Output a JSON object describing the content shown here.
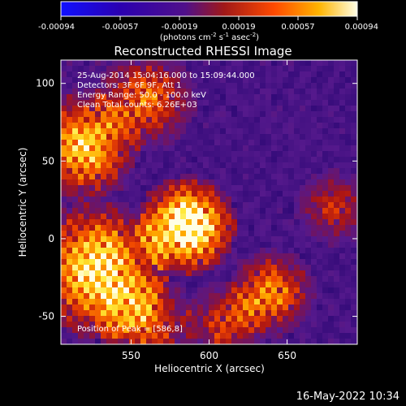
{
  "chart_data": {
    "type": "heatmap",
    "title": "Reconstructed RHESSI Image",
    "xlabel": "Heliocentric X (arcsec)",
    "ylabel": "Heliocentric Y (arcsec)",
    "xlim": [
      505,
      695
    ],
    "ylim": [
      -68,
      115
    ],
    "xticks": [
      550,
      600,
      650
    ],
    "yticks": [
      100,
      50,
      0,
      -50
    ],
    "colorbar": {
      "ticks": [
        "-0.00094",
        "-0.00057",
        "-0.00019",
        "0.00019",
        "0.00057",
        "0.00094"
      ],
      "unit_base": "(photons cm",
      "unit_exp1": "-2",
      "unit_mid": " s",
      "unit_exp2": "-1",
      "unit_mid2": " asec",
      "unit_exp3": "-2",
      "unit_end": ")",
      "colors": [
        "#1010ff",
        "#2b00b0",
        "#50108a",
        "#8a1f1f",
        "#ff4a00",
        "#ffb400",
        "#ffffe6"
      ]
    },
    "info_lines": [
      "25-Aug-2014 15:04:16.000 to 15:09:44.000",
      "Detectors: 3F 6F 9F, Att 1",
      "Energy Range: 50.0 - 100.0 keV",
      "Clean     Total counts: 6.26E+03"
    ],
    "peak_label": "Position of Peak = [586,8]",
    "peak_position": [
      586,
      8
    ],
    "hot_regions": [
      {
        "x": 586,
        "y": 8,
        "radius": 18,
        "intensity": 1.0
      },
      {
        "x": 530,
        "y": -20,
        "radius": 25,
        "intensity": 0.8
      },
      {
        "x": 520,
        "y": 60,
        "radius": 20,
        "intensity": 0.7
      },
      {
        "x": 560,
        "y": 90,
        "radius": 18,
        "intensity": 0.55
      },
      {
        "x": 640,
        "y": -35,
        "radius": 16,
        "intensity": 0.6
      },
      {
        "x": 560,
        "y": -55,
        "radius": 18,
        "intensity": 0.5
      },
      {
        "x": 610,
        "y": -55,
        "radius": 15,
        "intensity": 0.45
      },
      {
        "x": 680,
        "y": 20,
        "radius": 14,
        "intensity": 0.4
      }
    ]
  },
  "timestamp": "16-May-2022 10:34"
}
